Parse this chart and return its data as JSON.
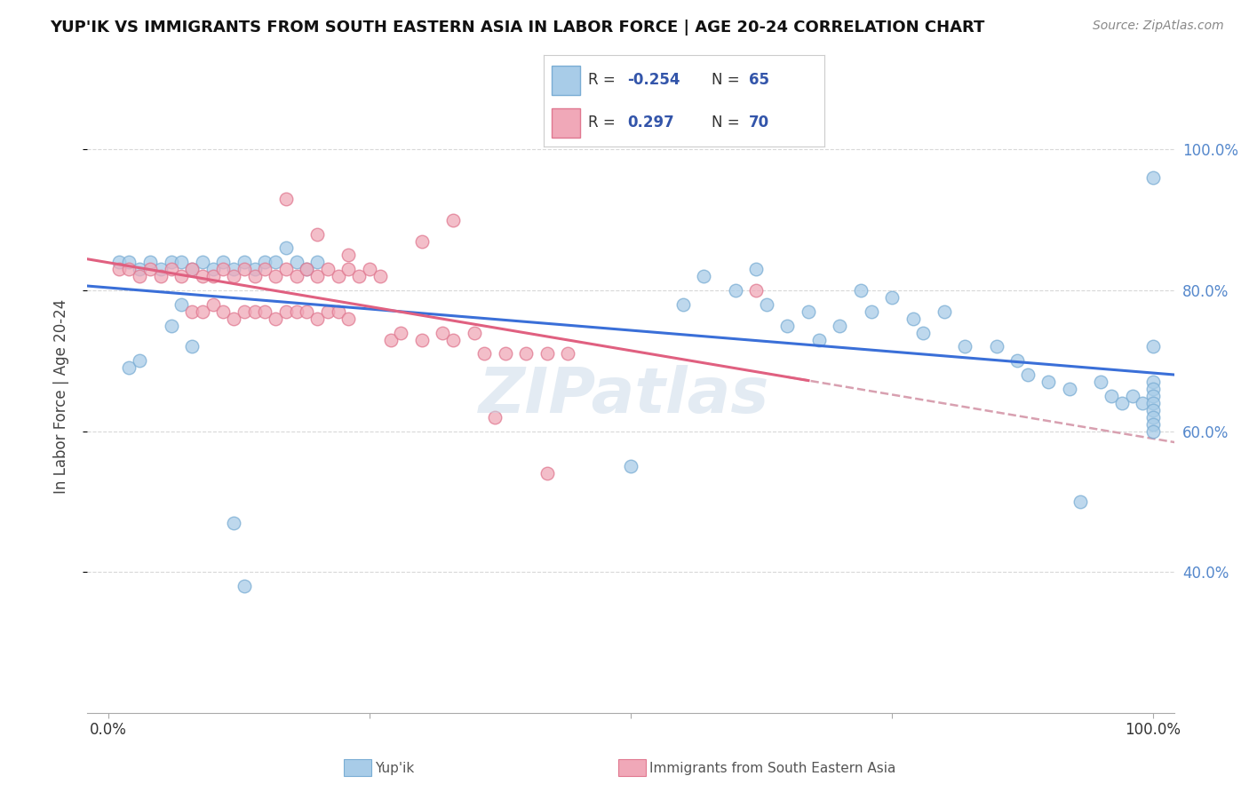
{
  "title": "YUP'IK VS IMMIGRANTS FROM SOUTH EASTERN ASIA IN LABOR FORCE | AGE 20-24 CORRELATION CHART",
  "source": "Source: ZipAtlas.com",
  "ylabel": "In Labor Force | Age 20-24",
  "color_blue": "#a8cce8",
  "color_blue_edge": "#7aadd4",
  "color_pink": "#f0a8b8",
  "color_pink_edge": "#e07890",
  "color_blue_line": "#3a6fd8",
  "color_pink_line": "#e06080",
  "color_dashed": "#d8a0b0",
  "background_color": "#ffffff",
  "grid_color": "#d8d8d8",
  "right_tick_color": "#5588cc",
  "legend_r_color": "#3355aa",
  "watermark_color": "#c8d8e8",
  "blue_x": [
    0.01,
    0.02,
    0.03,
    0.04,
    0.05,
    0.06,
    0.07,
    0.08,
    0.09,
    0.1,
    0.11,
    0.12,
    0.13,
    0.14,
    0.15,
    0.16,
    0.17,
    0.18,
    0.19,
    0.2,
    0.02,
    0.03,
    0.06,
    0.07,
    0.08,
    0.12,
    0.13,
    0.5,
    0.55,
    0.57,
    0.6,
    0.62,
    0.63,
    0.65,
    0.67,
    0.68,
    0.7,
    0.72,
    0.73,
    0.75,
    0.77,
    0.78,
    0.8,
    0.82,
    0.85,
    0.87,
    0.88,
    0.9,
    0.92,
    0.93,
    0.95,
    0.96,
    0.97,
    0.98,
    0.99,
    1.0,
    1.0,
    1.0,
    1.0,
    1.0,
    1.0,
    1.0,
    1.0,
    1.0,
    1.0
  ],
  "blue_y": [
    0.84,
    0.84,
    0.83,
    0.84,
    0.83,
    0.84,
    0.84,
    0.83,
    0.84,
    0.83,
    0.84,
    0.83,
    0.84,
    0.83,
    0.84,
    0.84,
    0.86,
    0.84,
    0.83,
    0.84,
    0.69,
    0.7,
    0.75,
    0.78,
    0.72,
    0.47,
    0.38,
    0.55,
    0.78,
    0.82,
    0.8,
    0.83,
    0.78,
    0.75,
    0.77,
    0.73,
    0.75,
    0.8,
    0.77,
    0.79,
    0.76,
    0.74,
    0.77,
    0.72,
    0.72,
    0.7,
    0.68,
    0.67,
    0.66,
    0.5,
    0.67,
    0.65,
    0.64,
    0.65,
    0.64,
    0.96,
    0.72,
    0.67,
    0.66,
    0.65,
    0.64,
    0.63,
    0.62,
    0.61,
    0.6
  ],
  "pink_x": [
    0.01,
    0.02,
    0.03,
    0.04,
    0.05,
    0.06,
    0.07,
    0.08,
    0.09,
    0.1,
    0.11,
    0.12,
    0.13,
    0.14,
    0.15,
    0.16,
    0.17,
    0.18,
    0.19,
    0.2,
    0.21,
    0.22,
    0.23,
    0.24,
    0.25,
    0.26,
    0.08,
    0.09,
    0.1,
    0.11,
    0.12,
    0.13,
    0.14,
    0.15,
    0.16,
    0.17,
    0.18,
    0.19,
    0.2,
    0.21,
    0.22,
    0.23,
    0.27,
    0.28,
    0.3,
    0.32,
    0.33,
    0.35,
    0.36,
    0.38,
    0.4,
    0.42,
    0.44,
    0.17,
    0.2,
    0.23,
    0.3,
    0.33,
    0.62,
    0.37,
    0.42
  ],
  "pink_y": [
    0.83,
    0.83,
    0.82,
    0.83,
    0.82,
    0.83,
    0.82,
    0.83,
    0.82,
    0.82,
    0.83,
    0.82,
    0.83,
    0.82,
    0.83,
    0.82,
    0.83,
    0.82,
    0.83,
    0.82,
    0.83,
    0.82,
    0.83,
    0.82,
    0.83,
    0.82,
    0.77,
    0.77,
    0.78,
    0.77,
    0.76,
    0.77,
    0.77,
    0.77,
    0.76,
    0.77,
    0.77,
    0.77,
    0.76,
    0.77,
    0.77,
    0.76,
    0.73,
    0.74,
    0.73,
    0.74,
    0.73,
    0.74,
    0.71,
    0.71,
    0.71,
    0.71,
    0.71,
    0.93,
    0.88,
    0.85,
    0.87,
    0.9,
    0.8,
    0.62,
    0.54
  ]
}
